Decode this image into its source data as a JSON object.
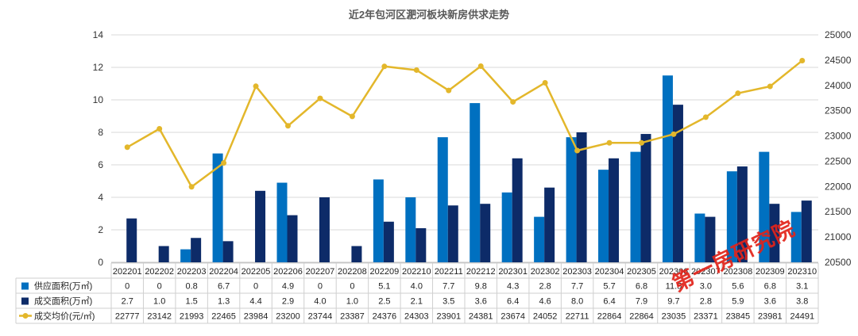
{
  "watermark": "第一房研究院",
  "chart_data": {
    "type": "bar",
    "title": "近2年包河区淝河板块新房供求走势",
    "categories": [
      "202201",
      "202202",
      "202203",
      "202204",
      "202205",
      "202206",
      "202207",
      "202208",
      "202209",
      "202210",
      "202211",
      "202212",
      "202301",
      "202302",
      "202303",
      "202304",
      "202305",
      "202306",
      "202307",
      "202308",
      "202309",
      "202310"
    ],
    "y_left": {
      "min": 0,
      "max": 14,
      "step": 2
    },
    "y_right": {
      "min": 20500,
      "max": 25000,
      "step": 500
    },
    "grid": true,
    "legend": "bottom",
    "series": [
      {
        "name": "供应面积(万㎡)",
        "type": "bar",
        "axis": "left",
        "color": "#0070c0",
        "values": [
          0,
          0,
          0.8,
          6.7,
          0,
          4.9,
          0,
          0,
          5.1,
          4.0,
          7.7,
          9.8,
          4.3,
          2.8,
          7.7,
          5.7,
          6.8,
          11.5,
          3.0,
          5.6,
          6.8,
          3.1
        ]
      },
      {
        "name": "成交面积(万㎡)",
        "type": "bar",
        "axis": "left",
        "color": "#0d2b68",
        "values": [
          2.7,
          1.0,
          1.5,
          1.3,
          4.4,
          2.9,
          4.0,
          1.0,
          2.5,
          2.1,
          3.5,
          3.6,
          6.4,
          4.6,
          8.0,
          6.4,
          7.9,
          9.7,
          2.8,
          5.9,
          3.6,
          3.8
        ]
      },
      {
        "name": "成交均价(元/㎡)",
        "type": "line",
        "axis": "right",
        "color": "#e3b72b",
        "values": [
          22777,
          23142,
          21993,
          22465,
          23984,
          23200,
          23744,
          23387,
          24376,
          24303,
          23901,
          24381,
          23674,
          24052,
          22711,
          22864,
          22864,
          23035,
          23371,
          23845,
          23981,
          24491
        ]
      }
    ]
  }
}
